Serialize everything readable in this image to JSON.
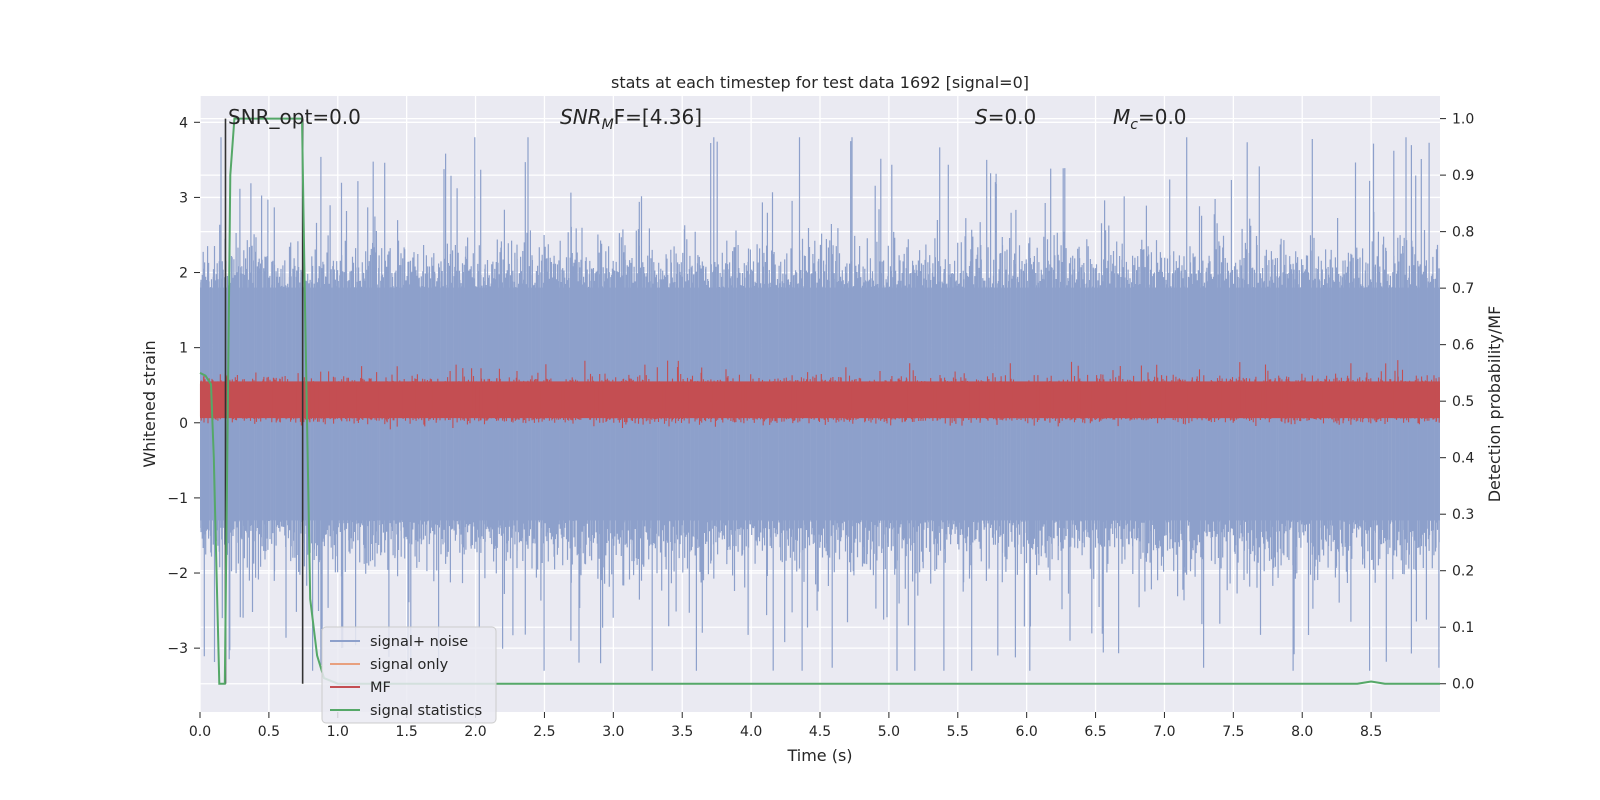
{
  "chart_data": {
    "type": "line",
    "title": "stats at each timestep for test data 1692 [signal=0]",
    "xlabel": "Time (s)",
    "ylabel_left": "Whitened strain",
    "ylabel_right": "Detection probability/MF",
    "xlim": [
      0.0,
      9.0
    ],
    "ylim_left": [
      -3.85,
      4.35
    ],
    "ylim_right": [
      -0.05,
      1.04
    ],
    "x_ticks": [
      "0.0",
      "0.5",
      "1.0",
      "1.5",
      "2.0",
      "2.5",
      "3.0",
      "3.5",
      "4.0",
      "4.5",
      "5.0",
      "5.5",
      "6.0",
      "6.5",
      "7.0",
      "7.5",
      "8.0",
      "8.5"
    ],
    "y_ticks_left": [
      "−3",
      "−2",
      "−1",
      "0",
      "1",
      "2",
      "3",
      "4"
    ],
    "y_ticks_right": [
      "0.0",
      "0.1",
      "0.2",
      "0.3",
      "0.4",
      "0.5",
      "0.6",
      "0.7",
      "0.8",
      "0.9",
      "1.0"
    ],
    "grid": true,
    "annotations": [
      {
        "prefix": "SNR_opt",
        "sub": "",
        "suffix": "=0.0"
      },
      {
        "prefix": "SNR",
        "sub": "M",
        "suffix": "F=[4.36]"
      },
      {
        "prefix": "S",
        "sub": "",
        "suffix": "=0.0"
      },
      {
        "prefix": "M",
        "sub": "c",
        "suffix": "=0.0"
      }
    ],
    "legend": {
      "position": "lower-left",
      "entries": [
        {
          "label": "signal+ noise",
          "color": "#8da0cb"
        },
        {
          "label": "signal only",
          "color": "#e8a07f"
        },
        {
          "label": "MF",
          "color": "#c44e52"
        },
        {
          "label": "signal statistics",
          "color": "#55a868"
        }
      ]
    },
    "series": [
      {
        "name": "signal+ noise",
        "axis": "left",
        "color": "#8da0cb",
        "style": "dense-noise",
        "typical_range": [
          -1.3,
          1.8
        ],
        "extreme_range": [
          -3.3,
          3.8
        ]
      },
      {
        "name": "MF",
        "axis": "right",
        "color": "#c44e52",
        "style": "dense-band",
        "typical_range": [
          0.46,
          0.56
        ],
        "extreme_range": [
          0.45,
          0.6
        ]
      },
      {
        "name": "signal statistics",
        "axis": "right",
        "color": "#55a868",
        "x": [
          0.0,
          0.04,
          0.08,
          0.1,
          0.12,
          0.14,
          0.16,
          0.18,
          0.2,
          0.22,
          0.25,
          0.3,
          0.5,
          0.72,
          0.74,
          0.76,
          0.8,
          0.85,
          0.9,
          1.0,
          2.0,
          4.0,
          6.0,
          8.0,
          8.4,
          8.45,
          8.5,
          8.55,
          8.6,
          9.0
        ],
        "values": [
          0.55,
          0.545,
          0.53,
          0.4,
          0.2,
          0.0,
          0.0,
          0.0,
          0.45,
          0.9,
          1.0,
          1.0,
          1.0,
          1.0,
          1.0,
          0.7,
          0.15,
          0.05,
          0.01,
          0.0,
          0.0,
          0.0,
          0.0,
          0.0,
          0.0,
          0.002,
          0.004,
          0.002,
          0.0,
          0.0
        ]
      },
      {
        "name": "markers",
        "axis": "right",
        "color": "#333333",
        "x": [
          0.185,
          0.745
        ],
        "y_range": [
          0.0,
          1.0
        ]
      }
    ]
  }
}
